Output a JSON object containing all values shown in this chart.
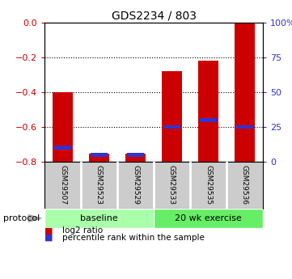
{
  "title": "GDS2234 / 803",
  "samples": [
    "GSM29507",
    "GSM29523",
    "GSM29529",
    "GSM29533",
    "GSM29535",
    "GSM29536"
  ],
  "log2_ratio": [
    -0.4,
    -0.755,
    -0.755,
    -0.28,
    -0.22,
    -0.005
  ],
  "percentile_rank": [
    10,
    5,
    5,
    25,
    30,
    25
  ],
  "ylim_left": [
    -0.8,
    0
  ],
  "ylim_right": [
    0,
    100
  ],
  "yticks_left": [
    0,
    -0.2,
    -0.4,
    -0.6,
    -0.8
  ],
  "yticks_right": [
    0,
    25,
    50,
    75,
    100
  ],
  "ytick_labels_right": [
    "0",
    "25",
    "50",
    "75",
    "100%"
  ],
  "bar_color": "#cc0000",
  "blue_color": "#3333cc",
  "bar_width": 0.55,
  "group_baseline_color": "#aaffaa",
  "group_exercise_color": "#66ee66",
  "sample_box_color": "#cccccc",
  "protocol_label": "protocol",
  "legend_red": "log2 ratio",
  "legend_blue": "percentile rank within the sample",
  "bg_color": "#ffffff",
  "axis_color": "#000000",
  "left_tick_color": "#cc0000",
  "right_tick_color": "#3333cc"
}
